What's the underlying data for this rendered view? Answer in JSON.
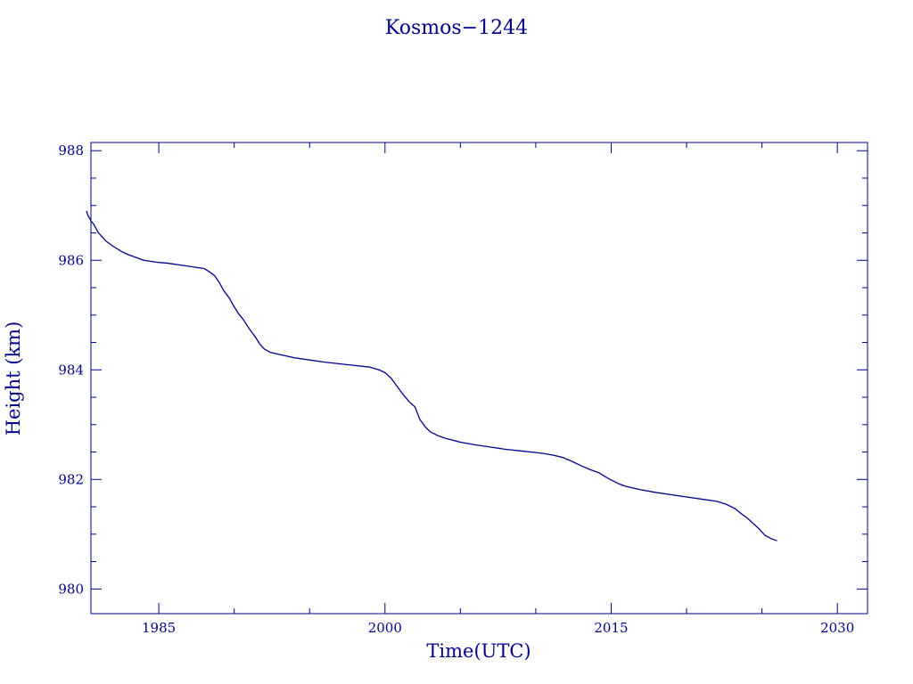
{
  "chart_data": {
    "type": "line",
    "title": "Kosmos−1244",
    "xlabel": "Time(UTC)",
    "ylabel": "Height (km)",
    "xlim": [
      1980.5,
      2032.0
    ],
    "ylim": [
      979.55,
      988.15
    ],
    "x_ticks": [
      1985,
      2000,
      2015,
      2030
    ],
    "x_tick_labels": [
      "1985",
      "2000",
      "2015",
      "2030"
    ],
    "y_ticks": [
      980,
      982,
      984,
      986,
      988
    ],
    "y_tick_labels": [
      "980",
      "982",
      "984",
      "986",
      "988"
    ],
    "grid": false,
    "legend": "none",
    "colors": {
      "axis": "#00008b",
      "line": "#00008b"
    },
    "series": [
      {
        "x": [
          1980.2,
          1980.3,
          1980.5,
          1980.7,
          1981.0,
          1981.5,
          1982.0,
          1982.6,
          1983.0,
          1983.5,
          1984.0,
          1984.5,
          1985.0,
          1985.5,
          1986.0,
          1986.5,
          1987.0,
          1987.5,
          1988.0,
          1988.3,
          1988.7,
          1989.0,
          1989.3,
          1989.7,
          1990.0,
          1990.3,
          1990.6,
          1991.0,
          1991.4,
          1991.7,
          1992.0,
          1992.4,
          1993.0,
          1994.0,
          1995.0,
          1996.0,
          1997.0,
          1998.0,
          1999.0,
          1999.6,
          2000.0,
          2000.4,
          2000.8,
          2001.2,
          2001.6,
          2002.0,
          2002.3,
          2002.7,
          2003.0,
          2003.5,
          2004.0,
          2005.0,
          2006.0,
          2007.0,
          2008.0,
          2009.0,
          2010.0,
          2010.6,
          2011.2,
          2011.8,
          2012.4,
          2013.0,
          2013.6,
          2014.2,
          2014.6,
          2015.0,
          2015.5,
          2016.0,
          2016.5,
          2017.0,
          2018.0,
          2019.0,
          2020.0,
          2021.0,
          2022.0,
          2022.6,
          2023.2,
          2023.6,
          2024.0,
          2024.4,
          2024.8,
          2025.2,
          2025.6,
          2026.0
        ],
        "y": [
          986.9,
          986.82,
          986.72,
          986.65,
          986.5,
          986.35,
          986.25,
          986.15,
          986.1,
          986.05,
          986.0,
          985.98,
          985.96,
          985.95,
          985.93,
          985.91,
          985.89,
          985.87,
          985.85,
          985.8,
          985.72,
          985.6,
          985.45,
          985.3,
          985.15,
          985.02,
          984.92,
          984.75,
          984.6,
          984.47,
          984.38,
          984.32,
          984.28,
          984.22,
          984.18,
          984.14,
          984.11,
          984.08,
          984.05,
          984.0,
          983.95,
          983.85,
          983.7,
          983.55,
          983.42,
          983.32,
          983.1,
          982.95,
          982.87,
          982.8,
          982.75,
          982.68,
          982.63,
          982.59,
          982.55,
          982.52,
          982.49,
          982.47,
          982.44,
          982.4,
          982.33,
          982.25,
          982.18,
          982.12,
          982.05,
          981.99,
          981.92,
          981.87,
          981.84,
          981.81,
          981.76,
          981.72,
          981.68,
          981.64,
          981.6,
          981.55,
          981.47,
          981.38,
          981.3,
          981.2,
          981.1,
          980.98,
          980.92,
          980.88
        ]
      }
    ]
  }
}
